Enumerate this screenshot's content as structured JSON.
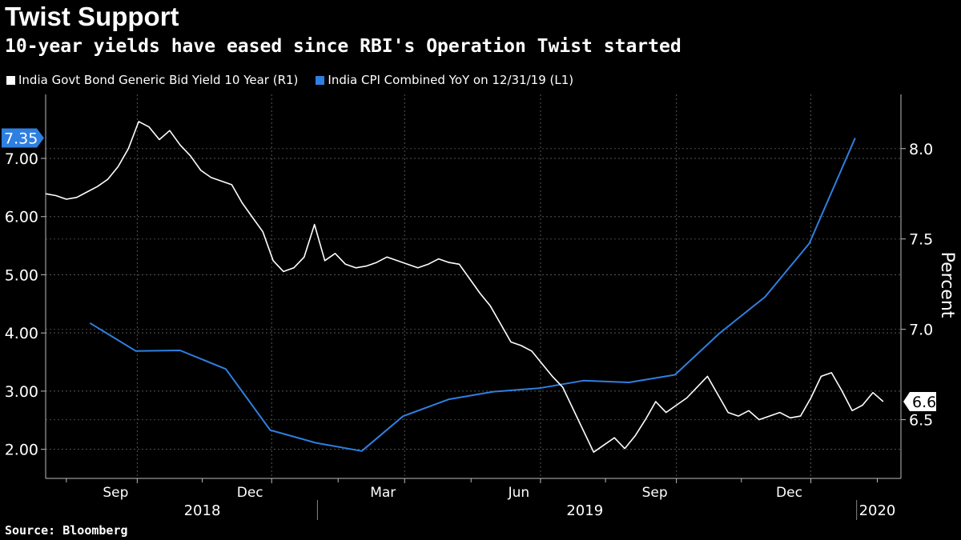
{
  "header": {
    "title": "Twist Support",
    "subtitle": "10-year yields have eased since RBI's Operation Twist started"
  },
  "legend": [
    {
      "label": "India Govt Bond Generic Bid Yield 10 Year  (R1)",
      "color": "#ffffff"
    },
    {
      "label": "India CPI Combined YoY  on 12/31/19 (L1)",
      "color": "#2f7fe0"
    }
  ],
  "source": "Source: Bloomberg",
  "chart_data": {
    "type": "line",
    "title": "Twist Support",
    "subtitle": "10-year yields have eased since RBI's Operation Twist started",
    "right_axis_label": "Percent",
    "x_axis": {
      "range": [
        "2018-07-01",
        "2020-01-31"
      ],
      "month_labels": [
        {
          "date": "2018-09-01",
          "label": "Sep"
        },
        {
          "date": "2018-12-01",
          "label": "Dec"
        },
        {
          "date": "2019-03-01",
          "label": "Mar"
        },
        {
          "date": "2019-06-01",
          "label": "Jun"
        },
        {
          "date": "2019-09-01",
          "label": "Sep"
        },
        {
          "date": "2019-12-01",
          "label": "Dec"
        }
      ],
      "year_labels": [
        {
          "date": "2018-10-15",
          "label": "2018"
        },
        {
          "date": "2019-07-01",
          "label": "2019"
        },
        {
          "date": "2020-01-15",
          "label": "2020"
        }
      ],
      "year_dividers": [
        "2019-01-01",
        "2020-01-01"
      ]
    },
    "left_axis": {
      "range": [
        1.5,
        8.1
      ],
      "ticks": [
        "2.00",
        "3.00",
        "4.00",
        "5.00",
        "6.00",
        "7.00"
      ],
      "tick_values": [
        2,
        3,
        4,
        5,
        6,
        7
      ]
    },
    "right_axis": {
      "range": [
        6.175,
        8.3
      ],
      "ticks": [
        "6.5",
        "7.0",
        "7.5",
        "8.0"
      ],
      "tick_values": [
        6.5,
        7.0,
        7.5,
        8.0
      ]
    },
    "grid": true,
    "series": [
      {
        "name": "India CPI Combined YoY  on 12/31/19",
        "axis": "left",
        "color": "#2f7fe0",
        "last_value_label": "7.35",
        "x": [
          "2018-07-31",
          "2018-08-31",
          "2018-09-30",
          "2018-10-31",
          "2018-11-30",
          "2018-12-31",
          "2019-01-31",
          "2019-02-28",
          "2019-03-31",
          "2019-04-30",
          "2019-05-31",
          "2019-06-30",
          "2019-07-31",
          "2019-08-31",
          "2019-09-30",
          "2019-10-31",
          "2019-11-30",
          "2019-12-31"
        ],
        "y": [
          4.17,
          3.69,
          3.7,
          3.38,
          2.33,
          2.11,
          1.97,
          2.57,
          2.86,
          2.99,
          3.05,
          3.18,
          3.15,
          3.28,
          3.99,
          4.62,
          5.54,
          7.35
        ]
      },
      {
        "name": "India Govt Bond Generic Bid Yield 10 Year",
        "axis": "right",
        "color": "#ffffff",
        "last_value_label": "6.6",
        "x": [
          "2018-07-01",
          "2018-07-08",
          "2018-07-15",
          "2018-07-22",
          "2018-07-29",
          "2018-08-05",
          "2018-08-12",
          "2018-08-19",
          "2018-08-26",
          "2018-09-02",
          "2018-09-09",
          "2018-09-16",
          "2018-09-23",
          "2018-09-30",
          "2018-10-07",
          "2018-10-14",
          "2018-10-21",
          "2018-10-28",
          "2018-11-04",
          "2018-11-11",
          "2018-11-18",
          "2018-11-25",
          "2018-12-02",
          "2018-12-09",
          "2018-12-16",
          "2018-12-23",
          "2018-12-30",
          "2019-01-06",
          "2019-01-13",
          "2019-01-20",
          "2019-01-27",
          "2019-02-03",
          "2019-02-10",
          "2019-02-17",
          "2019-02-24",
          "2019-03-03",
          "2019-03-10",
          "2019-03-17",
          "2019-03-24",
          "2019-03-31",
          "2019-04-07",
          "2019-04-14",
          "2019-04-21",
          "2019-04-28",
          "2019-05-05",
          "2019-05-12",
          "2019-05-19",
          "2019-05-26",
          "2019-06-02",
          "2019-06-09",
          "2019-06-16",
          "2019-06-23",
          "2019-06-30",
          "2019-07-07",
          "2019-07-14",
          "2019-07-21",
          "2019-07-28",
          "2019-08-04",
          "2019-08-11",
          "2019-08-18",
          "2019-08-25",
          "2019-09-01",
          "2019-09-08",
          "2019-09-15",
          "2019-09-22",
          "2019-09-29",
          "2019-10-06",
          "2019-10-13",
          "2019-10-20",
          "2019-10-27",
          "2019-11-03",
          "2019-11-10",
          "2019-11-17",
          "2019-11-24",
          "2019-12-01",
          "2019-12-08",
          "2019-12-15",
          "2019-12-22",
          "2019-12-29",
          "2020-01-05",
          "2020-01-12",
          "2020-01-19"
        ],
        "y": [
          7.75,
          7.74,
          7.72,
          7.73,
          7.76,
          7.79,
          7.83,
          7.9,
          8.0,
          8.15,
          8.12,
          8.05,
          8.1,
          8.02,
          7.96,
          7.88,
          7.84,
          7.82,
          7.8,
          7.7,
          7.62,
          7.54,
          7.38,
          7.32,
          7.34,
          7.4,
          7.58,
          7.38,
          7.42,
          7.36,
          7.34,
          7.35,
          7.37,
          7.4,
          7.38,
          7.36,
          7.34,
          7.36,
          7.39,
          7.37,
          7.36,
          7.28,
          7.2,
          7.13,
          7.03,
          6.93,
          6.91,
          6.88,
          6.81,
          6.74,
          6.68,
          6.56,
          6.44,
          6.32,
          6.36,
          6.4,
          6.34,
          6.41,
          6.5,
          6.6,
          6.54,
          6.58,
          6.62,
          6.68,
          6.74,
          6.64,
          6.54,
          6.52,
          6.55,
          6.5,
          6.52,
          6.54,
          6.51,
          6.52,
          6.62,
          6.74,
          6.76,
          6.66,
          6.55,
          6.58,
          6.65,
          6.6
        ]
      }
    ]
  }
}
